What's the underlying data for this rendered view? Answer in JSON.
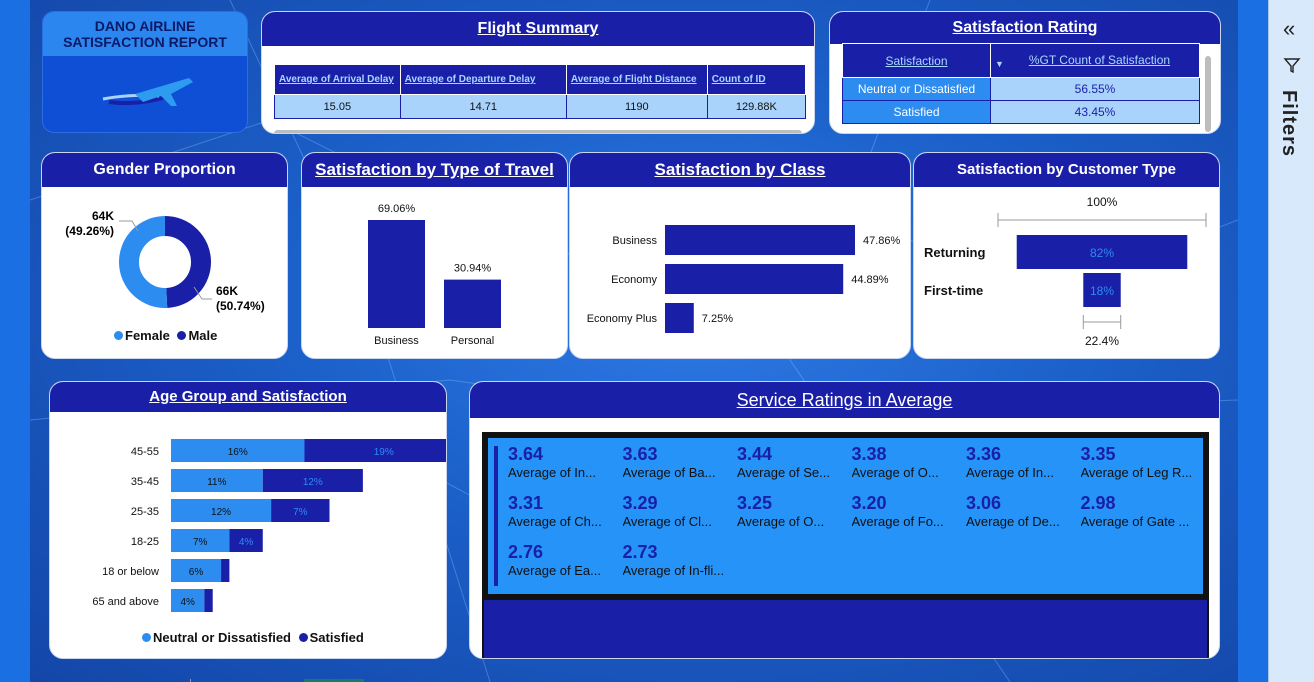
{
  "report_title": "DANO AIRLINE SATISFACTION REPORT",
  "colors": {
    "light_blue": "#2d8cf0",
    "dark_blue": "#1a1fa8",
    "table_cell": "#a9d3fb"
  },
  "flight_summary": {
    "title": "Flight Summary",
    "columns": [
      "Average of Arrival Delay",
      "Average of Departure Delay",
      "Average of Flight Distance",
      "Count of ID"
    ],
    "values": [
      "15.05",
      "14.71",
      "1190",
      "129.88K"
    ]
  },
  "satisfaction_rating": {
    "title": "Satisfaction Rating",
    "columns": [
      "Satisfaction",
      "%GT Count of Satisfaction"
    ],
    "rows": [
      {
        "label": "Neutral or Dissatisfied",
        "value": "56.55%"
      },
      {
        "label": "Satisfied",
        "value": "43.45%"
      }
    ]
  },
  "gender": {
    "title": "Gender Proportion",
    "legend": [
      "Female",
      "Male"
    ],
    "label_male_count": "64K",
    "label_male_pct": "(49.26%)",
    "label_female_count": "66K",
    "label_female_pct": "(50.74%)"
  },
  "travel": {
    "title": "Satisfaction by Type of Travel",
    "labels": [
      "69.06%",
      "30.94%"
    ]
  },
  "class": {
    "title": "Satisfaction by Class",
    "labels": [
      "47.86%",
      "44.89%",
      "7.25%"
    ]
  },
  "customer": {
    "title": "Satisfaction by Customer Type",
    "top_label": "100%",
    "bottom_label": "22.4%",
    "labels": [
      "82%",
      "18%"
    ]
  },
  "age": {
    "title": "Age Group and Satisfaction",
    "legend": [
      "Neutral or Dissatisfied",
      "Satisfied"
    ],
    "n_labels": [
      "16%",
      "11%",
      "12%",
      "7%",
      "6%",
      "4%"
    ],
    "s_labels": [
      "19%",
      "12%",
      "7%",
      "4%",
      "",
      ""
    ]
  },
  "services": {
    "title": "Service Ratings in Average",
    "items": [
      {
        "value": "3.64",
        "label": "Average of In..."
      },
      {
        "value": "3.63",
        "label": "Average of Ba..."
      },
      {
        "value": "3.44",
        "label": "Average of Se..."
      },
      {
        "value": "3.38",
        "label": "Average of O..."
      },
      {
        "value": "3.36",
        "label": "Average of In..."
      },
      {
        "value": "3.35",
        "label": "Average of Leg R..."
      },
      {
        "value": "3.31",
        "label": "Average of Ch..."
      },
      {
        "value": "3.29",
        "label": "Average of Cl..."
      },
      {
        "value": "3.25",
        "label": "Average of O..."
      },
      {
        "value": "3.20",
        "label": "Average of Fo..."
      },
      {
        "value": "3.06",
        "label": "Average of De..."
      },
      {
        "value": "2.98",
        "label": "Average of Gate ..."
      },
      {
        "value": "2.76",
        "label": "Average of Ea..."
      },
      {
        "value": "2.73",
        "label": "Average of In-fli..."
      }
    ]
  },
  "filters_pane": {
    "label": "Filters"
  },
  "chart_data": [
    {
      "type": "pie",
      "title": "Gender Proportion",
      "categories": [
        "Female",
        "Male"
      ],
      "values": [
        66,
        64
      ],
      "percentages": [
        50.74,
        49.26
      ]
    },
    {
      "type": "bar",
      "title": "Satisfaction by Type of Travel",
      "categories": [
        "Business",
        "Personal"
      ],
      "values": [
        69.06,
        30.94
      ]
    },
    {
      "type": "bar",
      "orientation": "horizontal",
      "title": "Satisfaction by Class",
      "categories": [
        "Business",
        "Economy",
        "Economy Plus"
      ],
      "values": [
        47.86,
        44.89,
        7.25
      ]
    },
    {
      "type": "bar",
      "orientation": "horizontal",
      "title": "Satisfaction by Customer Type",
      "categories": [
        "Returning",
        "First-time"
      ],
      "values": [
        82,
        18
      ]
    },
    {
      "type": "bar",
      "orientation": "horizontal",
      "stacked": true,
      "title": "Age Group and Satisfaction",
      "categories": [
        "45-55",
        "35-45",
        "25-35",
        "18-25",
        "18 or below",
        "65 and above"
      ],
      "series": [
        {
          "name": "Neutral or Dissatisfied",
          "values": [
            16,
            11,
            12,
            7,
            6,
            4
          ]
        },
        {
          "name": "Satisfied",
          "values": [
            19,
            12,
            7,
            4,
            1,
            1
          ]
        }
      ]
    }
  ]
}
